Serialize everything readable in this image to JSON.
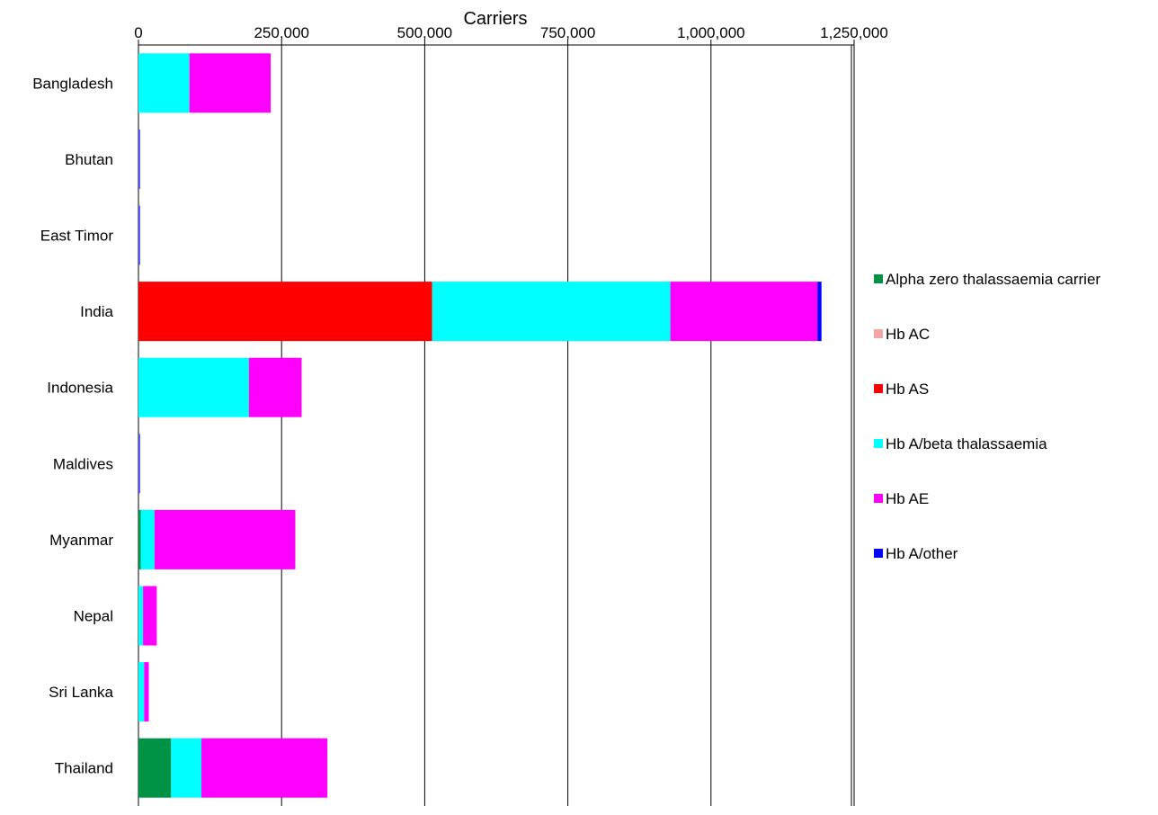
{
  "chart_data": {
    "type": "bar",
    "orientation": "horizontal",
    "stacked": true,
    "x_axis_position": "top",
    "title": "",
    "xlabel": "Carriers",
    "ylabel": "",
    "xlim": [
      0,
      1250000
    ],
    "x_ticks": [
      0,
      250000,
      500000,
      750000,
      1000000,
      1250000
    ],
    "x_tick_labels": [
      "0",
      "250,000",
      "500,000",
      "750,000",
      "1,000,000",
      "1,250,000"
    ],
    "grid": "vertical",
    "legend_position": "right",
    "categories": [
      "Bangladesh",
      "Bhutan",
      "East Timor",
      "India",
      "Indonesia",
      "Maldives",
      "Myanmar",
      "Nepal",
      "Sri Lanka",
      "Thailand"
    ],
    "series": [
      {
        "name": "Alpha zero thalassaemia carrier",
        "color": "#009245",
        "values": [
          0,
          0,
          0,
          0,
          0,
          0,
          4000,
          0,
          0,
          57000
        ]
      },
      {
        "name": "Hb AC",
        "color": "#F4A6A6",
        "values": [
          0,
          0,
          0,
          0,
          0,
          0,
          0,
          0,
          0,
          0
        ]
      },
      {
        "name": "Hb AS",
        "color": "#FF0000",
        "values": [
          0,
          0,
          0,
          513000,
          0,
          0,
          0,
          0,
          0,
          0
        ]
      },
      {
        "name": "Hb A/beta thalassaemia",
        "color": "#00FFFF",
        "values": [
          89000,
          500,
          500,
          416000,
          193000,
          500,
          24000,
          8000,
          10000,
          53000
        ]
      },
      {
        "name": "Hb AE",
        "color": "#FF00FF",
        "values": [
          142000,
          500,
          500,
          257000,
          92000,
          500,
          246000,
          24000,
          8000,
          220000
        ]
      },
      {
        "name": "Hb A/other",
        "color": "#0000FF",
        "values": [
          0,
          1000,
          1000,
          7000,
          0,
          1000,
          0,
          0,
          0,
          0
        ]
      }
    ]
  }
}
